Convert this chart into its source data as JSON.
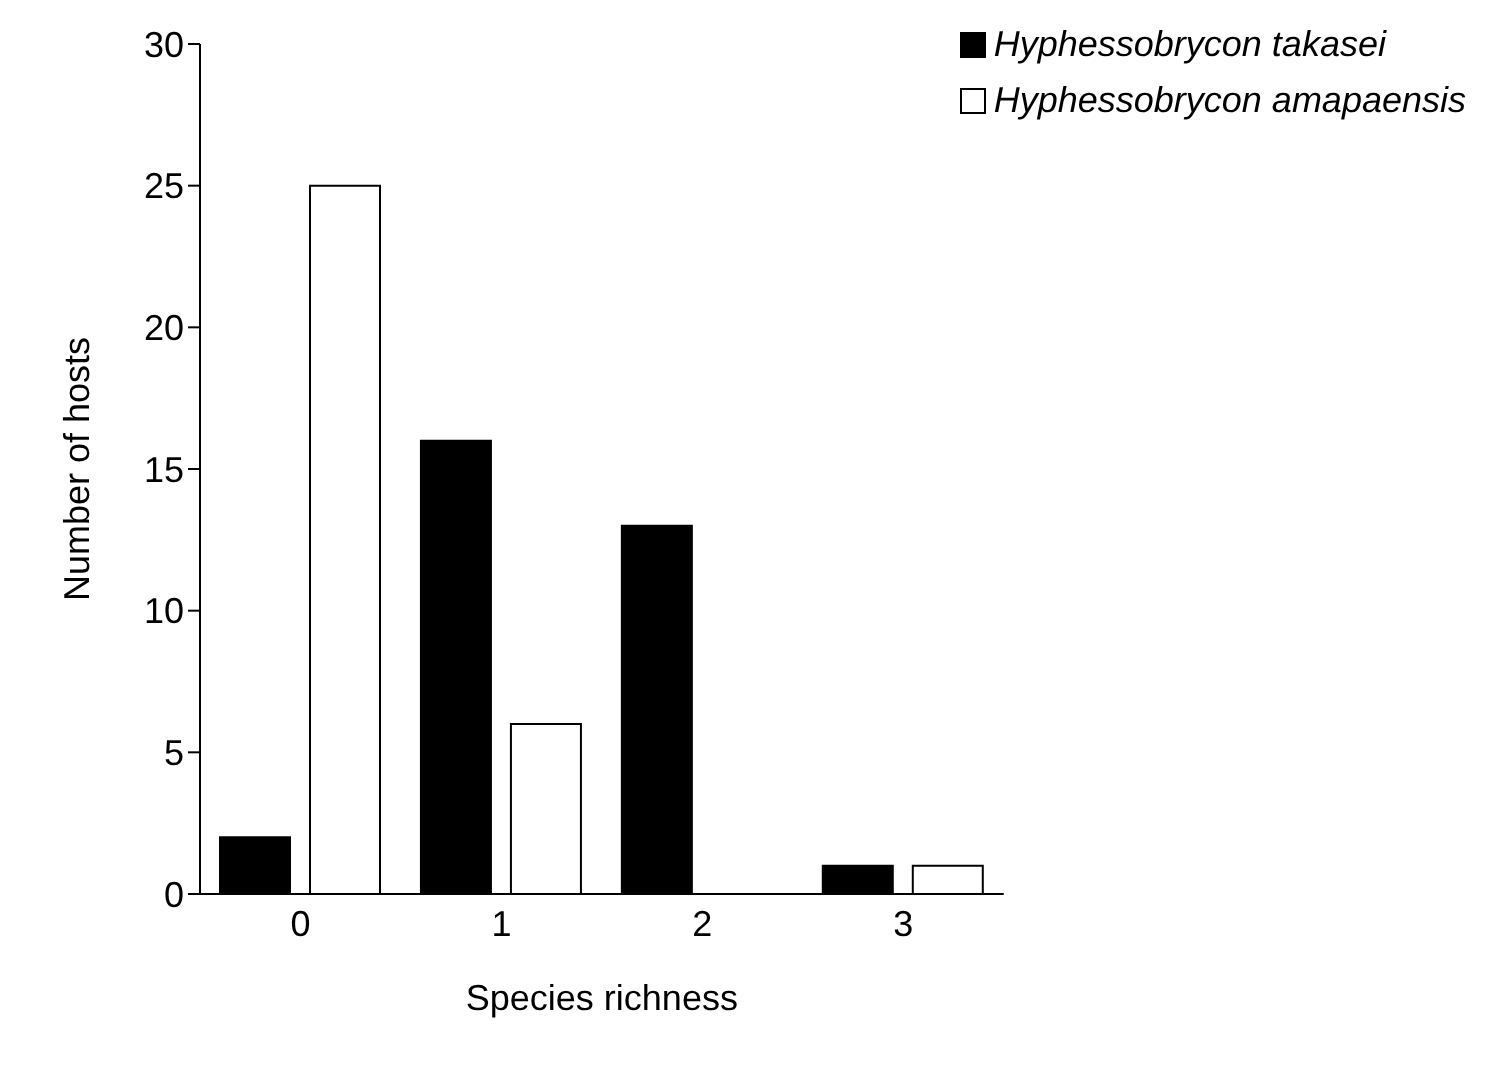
{
  "chart_data": {
    "type": "bar",
    "xlabel": "Species richness",
    "ylabel": "Number of hosts",
    "categories": [
      "0",
      "1",
      "2",
      "3"
    ],
    "series": [
      {
        "name": "Hyphessobrycon takasei",
        "color": "#000000",
        "values": [
          2,
          16,
          13,
          1
        ]
      },
      {
        "name": "Hyphessobrycon amapaensis",
        "color": "#ffffff",
        "values": [
          25,
          6,
          0,
          1
        ]
      }
    ],
    "ylim": [
      0,
      30
    ],
    "yticks": [
      0,
      5,
      10,
      15,
      20,
      25,
      30
    ],
    "legend": "top right"
  }
}
